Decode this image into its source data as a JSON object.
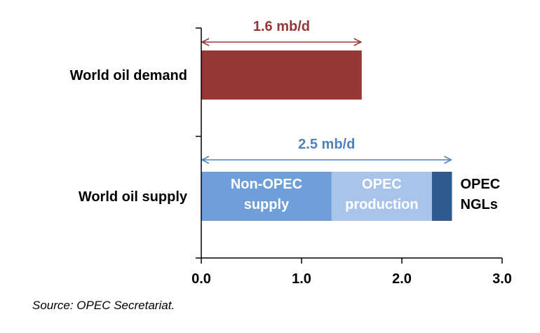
{
  "chart_data": {
    "type": "bar",
    "orientation": "horizontal",
    "stacked": true,
    "categories": [
      "World oil demand",
      "World oil supply"
    ],
    "series": [
      {
        "name": "World oil demand",
        "values": [
          1.6,
          0
        ],
        "color": "#953735",
        "segment_label": ""
      },
      {
        "name": "Non-OPEC supply",
        "values": [
          0,
          1.3
        ],
        "color": "#6f9fd8",
        "segment_label": "Non-OPEC supply"
      },
      {
        "name": "OPEC production",
        "values": [
          0,
          1.0
        ],
        "color": "#a9c4eb",
        "segment_label": "OPEC production"
      },
      {
        "name": "OPEC NGLs",
        "values": [
          0,
          0.2
        ],
        "color": "#2f5a8e",
        "segment_label": "OPEC NGLs"
      }
    ],
    "annotations": [
      {
        "category": "World oil demand",
        "text": "1.6 mb/d",
        "from": 0.0,
        "to": 1.6,
        "color": "#953735"
      },
      {
        "category": "World oil supply",
        "text": "2.5 mb/d",
        "from": 0.0,
        "to": 2.5,
        "color": "#4f81bd"
      }
    ],
    "xlim": [
      0.0,
      3.0
    ],
    "xticks": [
      "0.0",
      "1.0",
      "2.0",
      "3.0"
    ],
    "xlabel": "",
    "ylabel": "",
    "title": "",
    "grid": false,
    "legend": "none"
  },
  "source_note": "Source: OPEC Secretariat."
}
